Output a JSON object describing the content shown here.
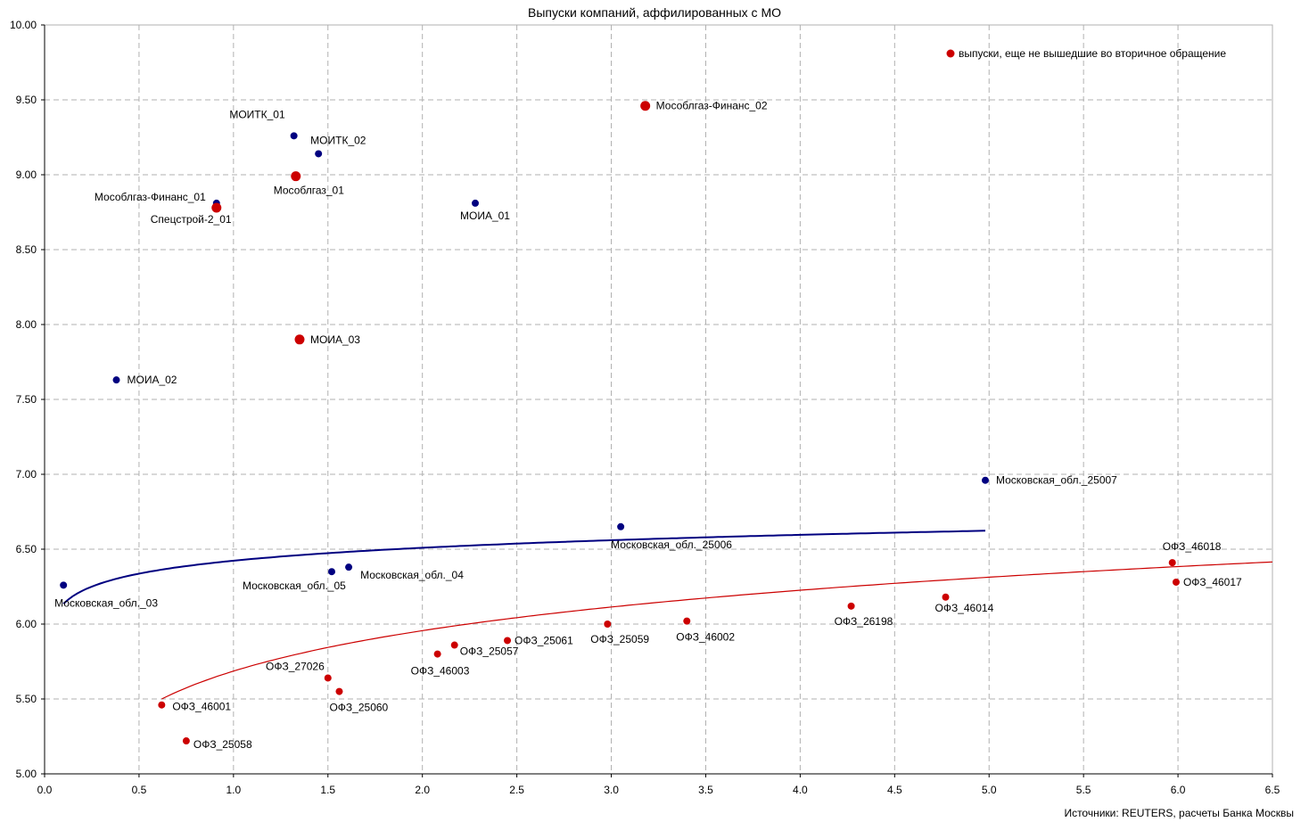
{
  "chart_data": {
    "type": "scatter",
    "title": "Выпуски компаний, аффилированных с  МО",
    "source": "Источники: REUTERS, расчеты Банка Москвы",
    "xlabel": "",
    "ylabel": "",
    "xlim": [
      0.0,
      6.5
    ],
    "ylim": [
      5.0,
      10.0
    ],
    "x_ticks": [
      "0.0",
      "0.5",
      "1.0",
      "1.5",
      "2.0",
      "2.5",
      "3.0",
      "3.5",
      "4.0",
      "4.5",
      "5.0",
      "5.5",
      "6.0",
      "6.5"
    ],
    "y_ticks": [
      "5.00",
      "5.50",
      "6.00",
      "6.50",
      "7.00",
      "7.50",
      "8.00",
      "8.50",
      "9.00",
      "9.50",
      "10.00"
    ],
    "grid": true,
    "colors": {
      "blue": "#000080",
      "red": "#cc0000",
      "grid": "#b0b0b0"
    },
    "legend": {
      "label": "выпуски, еще не вышедшие во вторичное обращение",
      "color": "#cc0000",
      "position": "top-right"
    },
    "series": [
      {
        "color": "#000080",
        "points": [
          {
            "label": "МОИТК_01",
            "x": 1.32,
            "y": 9.26
          },
          {
            "label": "МОИТК_02",
            "x": 1.45,
            "y": 9.14
          },
          {
            "label": "Мособлгаз-Финанс_01",
            "x": 0.91,
            "y": 8.81
          },
          {
            "label": "МОИА_01",
            "x": 2.28,
            "y": 8.81
          },
          {
            "label": "МОИА_02",
            "x": 0.38,
            "y": 7.63
          },
          {
            "label": "Московская_обл._25007",
            "x": 4.98,
            "y": 6.96
          },
          {
            "label": "Московская_обл._25006",
            "x": 3.05,
            "y": 6.65
          },
          {
            "label": "Московская_обл._05",
            "x": 1.52,
            "y": 6.35
          },
          {
            "label": "Московская_обл._04",
            "x": 1.61,
            "y": 6.38
          },
          {
            "label": "Московская_обл._03",
            "x": 0.1,
            "y": 6.26
          }
        ]
      },
      {
        "color": "#cc0000",
        "points": [
          {
            "label": "ОФЗ_46018",
            "x": 5.97,
            "y": 6.41
          },
          {
            "label": "ОФЗ_46017",
            "x": 5.99,
            "y": 6.28
          },
          {
            "label": "ОФЗ_46014",
            "x": 4.77,
            "y": 6.18
          },
          {
            "label": "ОФЗ_26198",
            "x": 4.27,
            "y": 6.12
          },
          {
            "label": "ОФЗ_46002",
            "x": 3.4,
            "y": 6.02
          },
          {
            "label": "ОФЗ_25059",
            "x": 2.98,
            "y": 6.0
          },
          {
            "label": "ОФЗ_25061",
            "x": 2.45,
            "y": 5.89
          },
          {
            "label": "ОФЗ_25057",
            "x": 2.17,
            "y": 5.86
          },
          {
            "label": "ОФЗ_46003",
            "x": 2.08,
            "y": 5.8
          },
          {
            "label": "ОФЗ_27026",
            "x": 1.5,
            "y": 5.64
          },
          {
            "label": "ОФЗ_25060",
            "x": 1.56,
            "y": 5.55
          },
          {
            "label": "ОФЗ_46001",
            "x": 0.62,
            "y": 5.46
          },
          {
            "label": "ОФЗ_25058",
            "x": 0.75,
            "y": 5.22
          }
        ]
      },
      {
        "color": "#cc0000",
        "points": [
          {
            "label": "Мособлгаз-Финанс_02",
            "x": 3.18,
            "y": 9.46
          },
          {
            "label": "Мособлгаз_01",
            "x": 1.33,
            "y": 8.99
          },
          {
            "label": "Спецстрой-2_01",
            "x": 0.91,
            "y": 8.78
          },
          {
            "label": "МОИА_03",
            "x": 1.35,
            "y": 7.9
          }
        ]
      }
    ],
    "trendlines": [
      {
        "color": "#000080",
        "type": "logarithmic",
        "a": 6.423,
        "b": 0.1246,
        "xrange": [
          0.1,
          4.98
        ]
      },
      {
        "color": "#cc0000",
        "type": "logarithmic",
        "a": 5.686,
        "b": 0.3895,
        "xrange": [
          0.62,
          6.5
        ]
      }
    ]
  }
}
